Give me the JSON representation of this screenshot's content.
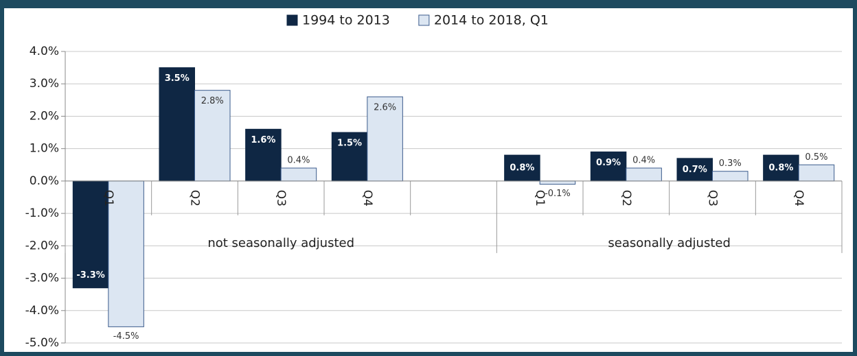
{
  "chart_data": {
    "type": "bar",
    "categories": [
      "Q1",
      "Q2",
      "Q3",
      "Q4",
      null,
      "Q1",
      "Q2",
      "Q3",
      "Q4"
    ],
    "groups": [
      "not seasonally adjusted",
      "seasonally adjusted"
    ],
    "series": [
      {
        "name": "1994 to 2013",
        "color": "#0f2744",
        "values": [
          -3.3,
          3.5,
          1.6,
          1.5,
          null,
          0.8,
          0.9,
          0.7,
          0.8
        ],
        "value_labels": [
          "-3.3%",
          "3.5%",
          "1.6%",
          "1.5%",
          null,
          "0.8%",
          "0.9%",
          "0.7%",
          "0.8%"
        ]
      },
      {
        "name": "2014 to 2018, Q1",
        "color": "#dce6f2",
        "values": [
          -4.5,
          2.8,
          0.4,
          2.6,
          null,
          -0.1,
          0.4,
          0.3,
          0.5
        ],
        "value_labels": [
          "-4.5%",
          "2.8%",
          "0.4%",
          "2.6%",
          null,
          "-0.1%",
          "0.4%",
          "0.3%",
          "0.5%"
        ]
      }
    ],
    "ylim": [
      -5,
      4
    ],
    "yticks": [
      {
        "value": 4,
        "label": "4.0%"
      },
      {
        "value": 3,
        "label": "3.0%"
      },
      {
        "value": 2,
        "label": "2.0%"
      },
      {
        "value": 1,
        "label": "1.0%"
      },
      {
        "value": 0,
        "label": "0.0%"
      },
      {
        "value": -1,
        "label": "-1.0%"
      },
      {
        "value": -2,
        "label": "-2.0%"
      },
      {
        "value": -3,
        "label": "-3.0%"
      },
      {
        "value": -4,
        "label": "-4.0%"
      },
      {
        "value": -5,
        "label": "-5.0%"
      }
    ],
    "grid": true
  }
}
